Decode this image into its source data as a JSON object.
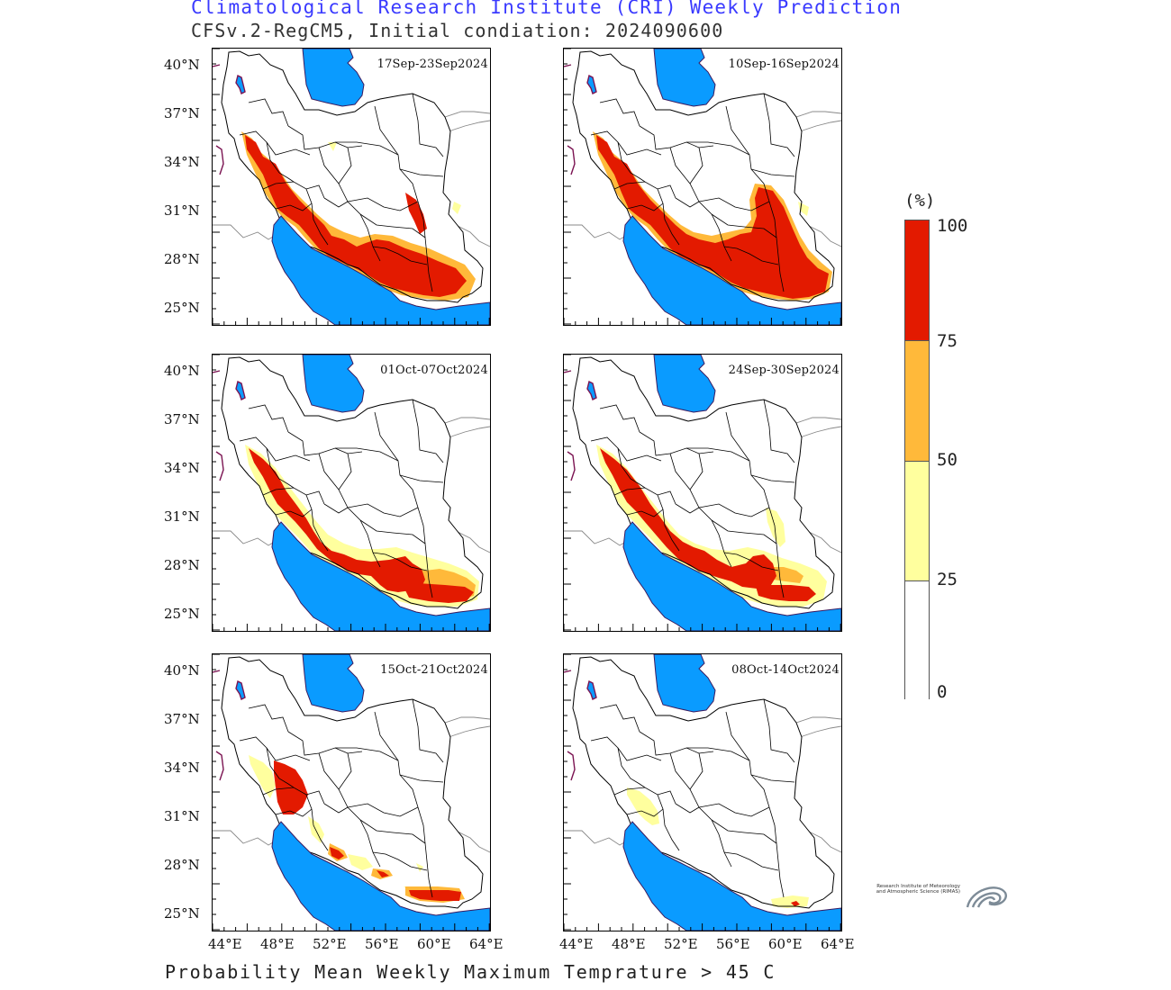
{
  "header": {
    "title": "Climatological Research Institute (CRI) Weekly Prediction",
    "subtitle": "CFSv.2-RegCM5, Initial condiation: 2024090600"
  },
  "footer": {
    "caption": "Probability Mean Weekly Maximum Temprature > 45 C"
  },
  "panels": [
    {
      "label": "17Sep-23Sep2024",
      "pattern": "high"
    },
    {
      "label": "10Sep-16Sep2024",
      "pattern": "veryhigh"
    },
    {
      "label": "01Oct-07Oct2024",
      "pattern": "medium"
    },
    {
      "label": "24Sep-30Sep2024",
      "pattern": "medium2"
    },
    {
      "label": "15Oct-21Oct2024",
      "pattern": "low"
    },
    {
      "label": "08Oct-14Oct2024",
      "pattern": "verylow"
    }
  ],
  "axes": {
    "lat_labels": [
      "40°N",
      "37°N",
      "34°N",
      "31°N",
      "28°N",
      "25°N"
    ],
    "lon_labels": [
      "44°E",
      "48°E",
      "52°E",
      "56°E",
      "60°E",
      "64°E"
    ]
  },
  "colorbar": {
    "unit": "(%)",
    "ticks": [
      "100",
      "75",
      "50",
      "25",
      "0"
    ],
    "bins": [
      {
        "range": "75-100",
        "color": "#e31a00"
      },
      {
        "range": "50-75",
        "color": "#ffb93a"
      },
      {
        "range": "25-50",
        "color": "#ffff9e"
      },
      {
        "range": "0-25",
        "color": "#ffffff"
      }
    ]
  },
  "colors": {
    "sea": "#0a9bff",
    "strong": "#e31a00",
    "medium": "#ffb93a",
    "weak": "#ffff9e",
    "border": "#000000",
    "lake": "#7b1452"
  },
  "logo": {
    "text": "Research Institute of Meteorology and Atmospheric Science (RIMAS)"
  }
}
